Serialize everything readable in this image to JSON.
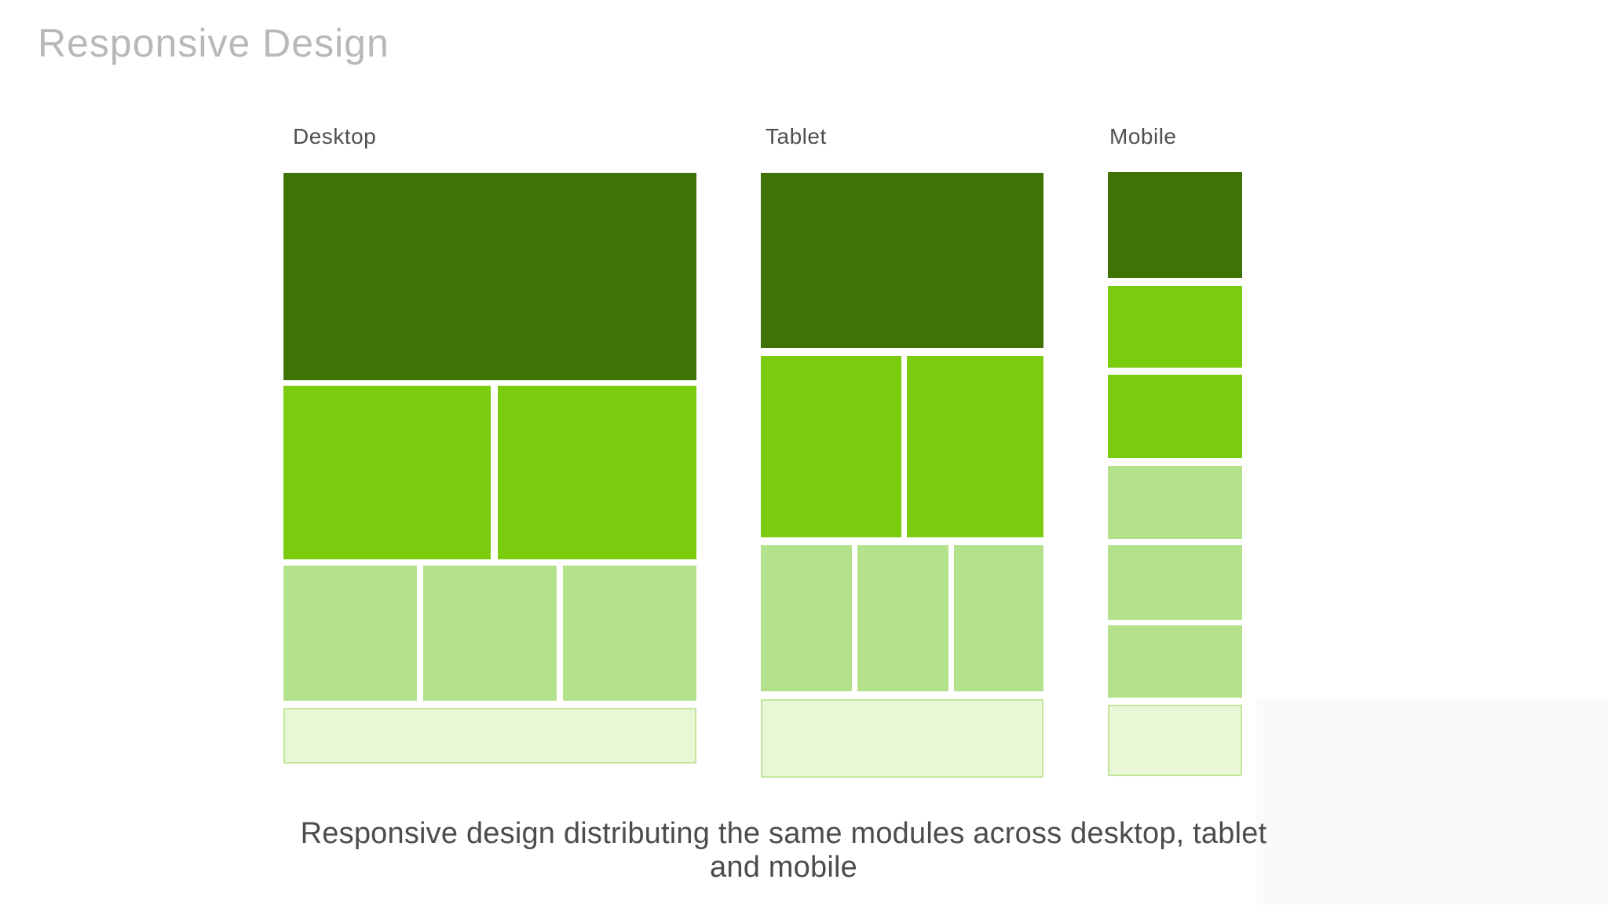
{
  "title": "Responsive Design",
  "caption": "Responsive design distributing the same modules across desktop, tablet and mobile",
  "colors": {
    "background": "#ffffff",
    "title_text": "#b8b8b8",
    "label_text": "#4f4f4f",
    "caption_text": "#4c4c4c",
    "header_green": "#3f7306",
    "feature_green": "#7bcb0e",
    "module_green": "#b4e18c",
    "footer_fill": "#e8f7d5",
    "footer_border": "#c4e69c"
  },
  "devices": [
    {
      "label": "Desktop",
      "blocks": {
        "header": 1,
        "features": 2,
        "modules": 3,
        "footer": 1
      }
    },
    {
      "label": "Tablet",
      "blocks": {
        "header": 1,
        "features": 2,
        "modules": 3,
        "footer": 1
      }
    },
    {
      "label": "Mobile",
      "blocks": {
        "header": 1,
        "features": 2,
        "modules": 3,
        "footer": 1
      }
    }
  ]
}
